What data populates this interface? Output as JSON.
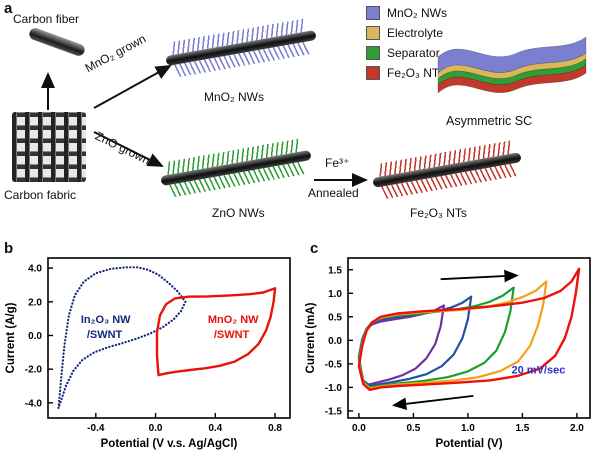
{
  "panel_a": {
    "label": "a",
    "carbon_fiber_label": "Carbon fiber",
    "carbon_fabric_label": "Carbon fabric",
    "mno2_grown_label": "MnO₂ grown",
    "zno_grown_label": "ZnO grown",
    "mno2_nws_label": "MnO₂ NWs",
    "zno_nws_label": "ZnO NWs",
    "fe3_label": "Fe³⁺",
    "annealed_label": "Annealed",
    "fe2o3_nts_label": "Fe₂O₃ NTs",
    "asymmetric_sc_label": "Asymmetric SC",
    "legend": [
      {
        "label": "MnO₂ NWs",
        "color": "#7b7fd0"
      },
      {
        "label": "Electrolyte",
        "color": "#d9b85c"
      },
      {
        "label": "Separator",
        "color": "#2f9e38"
      },
      {
        "label": "Fe₂O₃ NTs",
        "color": "#c0392b"
      }
    ],
    "colors": {
      "mno2_spikes": "#7b7fd0",
      "zno_spikes": "#2f9e38",
      "fe2o3_spikes": "#c0392b"
    }
  },
  "panel_b": {
    "label": "b"
  },
  "panel_c": {
    "label": "c"
  },
  "chart_data": [
    {
      "type": "line",
      "title": "",
      "xlabel": "Potential (V v.s. Ag/AgCl)",
      "ylabel": "Current (A/g)",
      "xlim": [
        -0.72,
        0.9
      ],
      "ylim": [
        -4.9,
        4.6
      ],
      "grid": false,
      "legend_position": "none",
      "xticks": [
        {
          "v": -0.4,
          "label": "-0.4"
        },
        {
          "v": 0.0,
          "label": "0.0"
        },
        {
          "v": 0.4,
          "label": "0.4"
        },
        {
          "v": 0.8,
          "label": "0.8"
        }
      ],
      "yticks": [
        {
          "v": 4,
          "label": "4.0"
        },
        {
          "v": 2,
          "label": "2.0"
        },
        {
          "v": 0,
          "label": "0.0"
        },
        {
          "v": -2,
          "label": "-2.0"
        },
        {
          "v": -4,
          "label": "-4.0"
        }
      ],
      "series": [
        {
          "name": "In₂O₃ NW/SWNT",
          "color": "#14287d",
          "width": 2.2,
          "dash": "0.2 3.2",
          "closed": true,
          "points": [
            [
              -0.65,
              -4.3
            ],
            [
              -0.63,
              -2.4
            ],
            [
              -0.61,
              -0.6
            ],
            [
              -0.58,
              1.2
            ],
            [
              -0.54,
              2.4
            ],
            [
              -0.48,
              3.2
            ],
            [
              -0.4,
              3.7
            ],
            [
              -0.3,
              3.95
            ],
            [
              -0.2,
              4.05
            ],
            [
              -0.12,
              4.05
            ],
            [
              -0.05,
              3.9
            ],
            [
              0.02,
              3.6
            ],
            [
              0.09,
              3.1
            ],
            [
              0.15,
              2.6
            ],
            [
              0.2,
              2.0
            ],
            [
              0.17,
              1.45
            ],
            [
              0.12,
              0.95
            ],
            [
              0.05,
              0.5
            ],
            [
              -0.04,
              0.1
            ],
            [
              -0.13,
              -0.2
            ],
            [
              -0.22,
              -0.45
            ],
            [
              -0.32,
              -0.7
            ],
            [
              -0.41,
              -1.0
            ],
            [
              -0.49,
              -1.45
            ],
            [
              -0.55,
              -2.1
            ],
            [
              -0.6,
              -3.0
            ],
            [
              -0.63,
              -3.8
            ]
          ]
        },
        {
          "name": "MnO₂ NW/SWNT",
          "color": "#ea120b",
          "width": 2.4,
          "closed": true,
          "points": [
            [
              0.02,
              -2.35
            ],
            [
              0.01,
              -1.2
            ],
            [
              0.01,
              0.2
            ],
            [
              0.03,
              1.2
            ],
            [
              0.07,
              1.85
            ],
            [
              0.13,
              2.2
            ],
            [
              0.22,
              2.3
            ],
            [
              0.35,
              2.32
            ],
            [
              0.5,
              2.38
            ],
            [
              0.63,
              2.45
            ],
            [
              0.72,
              2.55
            ],
            [
              0.8,
              2.8
            ],
            [
              0.79,
              2.0
            ],
            [
              0.77,
              1.1
            ],
            [
              0.74,
              0.3
            ],
            [
              0.69,
              -0.5
            ],
            [
              0.62,
              -1.1
            ],
            [
              0.53,
              -1.55
            ],
            [
              0.43,
              -1.8
            ],
            [
              0.33,
              -1.95
            ],
            [
              0.23,
              -2.05
            ],
            [
              0.14,
              -2.15
            ],
            [
              0.07,
              -2.25
            ]
          ]
        }
      ],
      "annotations": [
        {
          "text": "In₂O₃ NW",
          "x": -0.5,
          "y": 0.75,
          "color": "#14287d"
        },
        {
          "text": "/SWNT",
          "x": -0.46,
          "y": -0.15,
          "color": "#14287d"
        },
        {
          "text": "MnO₂ NW",
          "x": 0.35,
          "y": 0.75,
          "color": "#ea120b"
        },
        {
          "text": "/SWNT",
          "x": 0.39,
          "y": -0.15,
          "color": "#ea120b"
        }
      ],
      "arrows": []
    },
    {
      "type": "line",
      "title": "",
      "xlabel": "Potential (V)",
      "ylabel": "Current (mA)",
      "xlim": [
        -0.1,
        2.12
      ],
      "ylim": [
        -1.65,
        1.75
      ],
      "grid": false,
      "legend_position": "none",
      "scan_rate_label": "20 mV/sec",
      "xticks": [
        {
          "v": 0.0,
          "label": "0.0"
        },
        {
          "v": 0.5,
          "label": "0.5"
        },
        {
          "v": 1.0,
          "label": "1.0"
        },
        {
          "v": 1.5,
          "label": "1.5"
        },
        {
          "v": 2.0,
          "label": "2.0"
        }
      ],
      "yticks": [
        {
          "v": 1.5,
          "label": "1.5"
        },
        {
          "v": 1.0,
          "label": "1.0"
        },
        {
          "v": 0.5,
          "label": "0.5"
        },
        {
          "v": 0.0,
          "label": "0.0"
        },
        {
          "v": -0.5,
          "label": "-0.5"
        },
        {
          "v": -1.0,
          "label": "-1.0"
        },
        {
          "v": -1.5,
          "label": "-1.5"
        }
      ],
      "series": [
        {
          "name": "CV window 0 to 0.8 V",
          "color": "#7030a0",
          "width": 2.2,
          "closed": true,
          "points": [
            [
              0.0,
              -0.35
            ],
            [
              0.03,
              0.03
            ],
            [
              0.07,
              0.24
            ],
            [
              0.12,
              0.34
            ],
            [
              0.2,
              0.4
            ],
            [
              0.33,
              0.45
            ],
            [
              0.47,
              0.5
            ],
            [
              0.6,
              0.57
            ],
            [
              0.7,
              0.64
            ],
            [
              0.78,
              0.74
            ],
            [
              0.75,
              0.3
            ],
            [
              0.7,
              -0.08
            ],
            [
              0.62,
              -0.38
            ],
            [
              0.52,
              -0.6
            ],
            [
              0.4,
              -0.74
            ],
            [
              0.28,
              -0.83
            ],
            [
              0.18,
              -0.89
            ],
            [
              0.09,
              -0.94
            ],
            [
              0.03,
              -0.84
            ]
          ]
        },
        {
          "name": "CV window 0 to 1.0 V",
          "color": "#2052a3",
          "width": 2.2,
          "closed": true,
          "points": [
            [
              0.0,
              -0.4
            ],
            [
              0.03,
              0.0
            ],
            [
              0.07,
              0.25
            ],
            [
              0.12,
              0.37
            ],
            [
              0.2,
              0.44
            ],
            [
              0.35,
              0.5
            ],
            [
              0.55,
              0.55
            ],
            [
              0.72,
              0.62
            ],
            [
              0.85,
              0.7
            ],
            [
              0.95,
              0.8
            ],
            [
              1.03,
              0.93
            ],
            [
              1.0,
              0.45
            ],
            [
              0.95,
              0.05
            ],
            [
              0.87,
              -0.3
            ],
            [
              0.76,
              -0.55
            ],
            [
              0.62,
              -0.72
            ],
            [
              0.46,
              -0.82
            ],
            [
              0.32,
              -0.88
            ],
            [
              0.2,
              -0.93
            ],
            [
              0.1,
              -0.97
            ],
            [
              0.04,
              -0.86
            ]
          ]
        },
        {
          "name": "CV window 0 to 1.4 V",
          "color": "#17a02c",
          "width": 2.2,
          "closed": true,
          "points": [
            [
              0.0,
              -0.45
            ],
            [
              0.03,
              -0.04
            ],
            [
              0.07,
              0.24
            ],
            [
              0.12,
              0.39
            ],
            [
              0.2,
              0.47
            ],
            [
              0.35,
              0.53
            ],
            [
              0.6,
              0.58
            ],
            [
              0.85,
              0.64
            ],
            [
              1.05,
              0.72
            ],
            [
              1.2,
              0.82
            ],
            [
              1.32,
              0.95
            ],
            [
              1.42,
              1.12
            ],
            [
              1.39,
              0.62
            ],
            [
              1.34,
              0.18
            ],
            [
              1.26,
              -0.22
            ],
            [
              1.15,
              -0.48
            ],
            [
              1.0,
              -0.66
            ],
            [
              0.82,
              -0.78
            ],
            [
              0.6,
              -0.86
            ],
            [
              0.35,
              -0.92
            ],
            [
              0.2,
              -0.96
            ],
            [
              0.1,
              -1.0
            ],
            [
              0.04,
              -0.88
            ]
          ]
        },
        {
          "name": "CV window 0 to 1.7 V",
          "color": "#f6a01a",
          "width": 2.2,
          "closed": true,
          "points": [
            [
              0.0,
              -0.5
            ],
            [
              0.03,
              -0.08
            ],
            [
              0.07,
              0.22
            ],
            [
              0.12,
              0.38
            ],
            [
              0.2,
              0.48
            ],
            [
              0.35,
              0.55
            ],
            [
              0.6,
              0.6
            ],
            [
              0.9,
              0.64
            ],
            [
              1.15,
              0.7
            ],
            [
              1.35,
              0.8
            ],
            [
              1.5,
              0.92
            ],
            [
              1.62,
              1.05
            ],
            [
              1.72,
              1.25
            ],
            [
              1.69,
              0.75
            ],
            [
              1.64,
              0.3
            ],
            [
              1.57,
              -0.12
            ],
            [
              1.46,
              -0.45
            ],
            [
              1.3,
              -0.65
            ],
            [
              1.1,
              -0.78
            ],
            [
              0.88,
              -0.85
            ],
            [
              0.6,
              -0.9
            ],
            [
              0.35,
              -0.94
            ],
            [
              0.2,
              -0.98
            ],
            [
              0.1,
              -1.02
            ],
            [
              0.04,
              -0.9
            ]
          ]
        },
        {
          "name": "CV window 0 to 2.0 V",
          "color": "#ea120b",
          "width": 2.4,
          "closed": true,
          "points": [
            [
              0.0,
              -0.55
            ],
            [
              0.03,
              -0.12
            ],
            [
              0.07,
              0.2
            ],
            [
              0.12,
              0.38
            ],
            [
              0.2,
              0.5
            ],
            [
              0.35,
              0.57
            ],
            [
              0.6,
              0.62
            ],
            [
              0.9,
              0.66
            ],
            [
              1.2,
              0.72
            ],
            [
              1.5,
              0.8
            ],
            [
              1.7,
              0.9
            ],
            [
              1.85,
              1.05
            ],
            [
              1.95,
              1.25
            ],
            [
              2.02,
              1.52
            ],
            [
              1.99,
              1.0
            ],
            [
              1.95,
              0.5
            ],
            [
              1.89,
              0.05
            ],
            [
              1.8,
              -0.33
            ],
            [
              1.66,
              -0.6
            ],
            [
              1.45,
              -0.76
            ],
            [
              1.2,
              -0.85
            ],
            [
              0.9,
              -0.9
            ],
            [
              0.6,
              -0.94
            ],
            [
              0.35,
              -0.97
            ],
            [
              0.2,
              -1.0
            ],
            [
              0.1,
              -1.05
            ],
            [
              0.04,
              -0.93
            ]
          ]
        }
      ],
      "annotations": [
        {
          "text": "20 mV/sec",
          "x": 1.4,
          "y": -0.7,
          "color": "#2433c8"
        }
      ],
      "arrows": [
        {
          "x1": 0.75,
          "y1": 1.3,
          "x2": 1.45,
          "y2": 1.38
        },
        {
          "x1": 1.05,
          "y1": -1.18,
          "x2": 0.32,
          "y2": -1.38
        }
      ]
    }
  ]
}
